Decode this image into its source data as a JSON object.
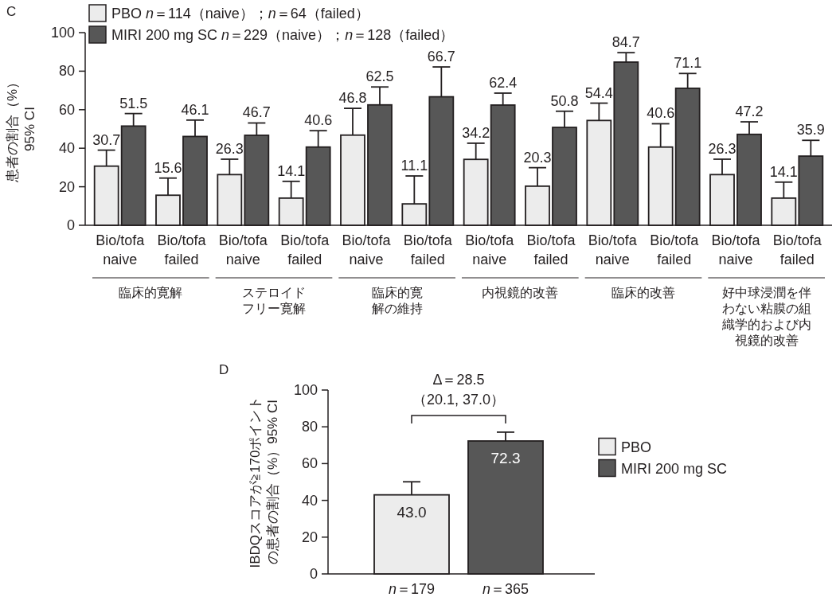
{
  "chart_data": [
    {
      "type": "bar",
      "title": "C",
      "ylabel": "患者の割合（%）\n95% CI",
      "categories": [
        "Bio/tofa naive",
        "Bio/tofa failed",
        "Bio/tofa naive",
        "Bio/tofa failed",
        "Bio/tofa naive",
        "Bio/tofa failed",
        "Bio/tofa naive",
        "Bio/tofa failed",
        "Bio/tofa naive",
        "Bio/tofa failed",
        "Bio/tofa naive",
        "Bio/tofa failed"
      ],
      "series": [
        {
          "name": "PBO n＝114（naive）；n＝64（failed）",
          "color": "#ececec",
          "values": [
            30.7,
            15.6,
            26.3,
            14.1,
            46.8,
            11.1,
            34.2,
            20.3,
            54.4,
            40.6,
            26.3,
            14.1
          ],
          "errors": [
            [
              30.7,
              39
            ],
            [
              15.6,
              24.5
            ],
            [
              26.3,
              34.3
            ],
            [
              14.1,
              22.8
            ],
            [
              46.8,
              60.7
            ],
            [
              11.1,
              25.6
            ],
            [
              34.2,
              42.6
            ],
            [
              20.3,
              29.9
            ],
            [
              54.4,
              63.4
            ],
            [
              40.6,
              52.7
            ],
            [
              26.3,
              34.3
            ],
            [
              14.1,
              22.4
            ]
          ]
        },
        {
          "name": "MIRI 200 mg SC n＝229（naive）；n＝128（failed）",
          "color": "#575757",
          "values": [
            51.5,
            46.1,
            46.7,
            40.6,
            62.5,
            66.7,
            62.4,
            50.8,
            84.7,
            71.1,
            47.2,
            35.9
          ],
          "errors": [
            [
              51.5,
              58
            ],
            [
              46.1,
              54.6
            ],
            [
              46.7,
              53.1
            ],
            [
              40.6,
              49.1
            ],
            [
              62.5,
              71.8
            ],
            [
              66.7,
              82.2
            ],
            [
              62.4,
              68.6
            ],
            [
              50.8,
              59.2
            ],
            [
              84.7,
              89.6
            ],
            [
              71.1,
              78.8
            ],
            [
              47.2,
              53.7
            ],
            [
              35.9,
              44.1
            ]
          ]
        }
      ],
      "ylim": [
        0,
        100
      ],
      "yticks": [
        0,
        20,
        40,
        60,
        80,
        100
      ],
      "data_labels": true,
      "legend": "top left",
      "grid": false,
      "annotations": [
        "臨床的寛解",
        "ステロイドフリー寛解",
        "臨床的寛解の維持",
        "内視鏡的改善",
        "臨床的改善",
        "好中球浸潤を伴わない粘膜の組織学的および内視鏡的改善"
      ]
    },
    {
      "type": "bar",
      "title": "D",
      "ylabel": "IBDQスコアが≧170ポイントの患者の割合（%）95% CI",
      "categories": [
        "n＝179",
        "n＝365"
      ],
      "series": [
        {
          "name": "PBO",
          "color": "#ececec",
          "values": [
            43.0,
            null
          ],
          "errors": [
            [
              43.0,
              50.1
            ],
            null
          ],
          "value_labels": [
            "43.0",
            null
          ]
        },
        {
          "name": "MIRI 200 mg SC",
          "color": "#575757",
          "values": [
            null,
            72.3
          ],
          "errors": [
            null,
            [
              72.3,
              77.1
            ]
          ],
          "value_labels": [
            null,
            "72.3"
          ]
        }
      ],
      "ylim": [
        0,
        100
      ],
      "yticks": [
        0,
        20,
        40,
        60,
        80,
        100
      ],
      "legend": "right",
      "grid": false,
      "annotations": [
        "Δ＝28.5",
        "（20.1, 37.0）"
      ]
    }
  ]
}
